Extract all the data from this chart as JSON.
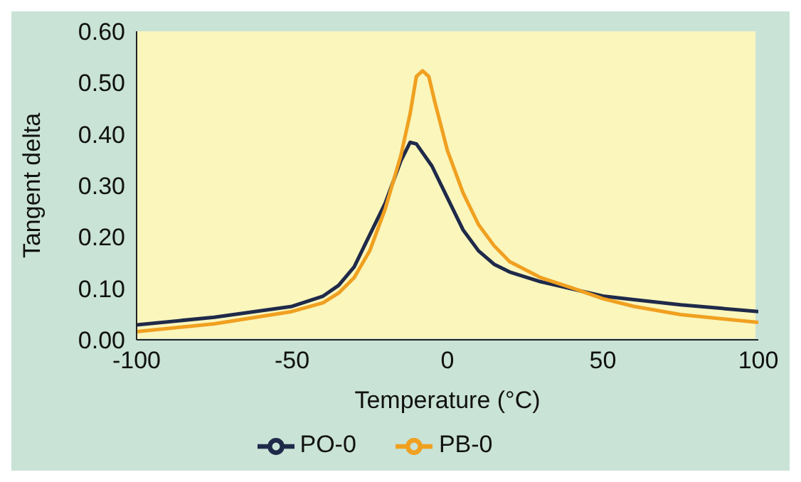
{
  "chart_data": {
    "type": "line",
    "xlabel": "Temperature (°C)",
    "ylabel": "Tangent delta",
    "xlim": [
      -100,
      100
    ],
    "xticks": [
      -100,
      -50,
      0,
      50,
      100
    ],
    "ylim": [
      0,
      0.6
    ],
    "yticks": [
      {
        "value": 0,
        "label": "0.00"
      },
      {
        "value": 0.1,
        "label": "0.10"
      },
      {
        "value": 0.2,
        "label": "0.20"
      },
      {
        "value": 0.3,
        "label": "0.30"
      },
      {
        "value": 0.4,
        "label": "0.40"
      },
      {
        "value": 0.5,
        "label": "0.50"
      },
      {
        "value": 0.6,
        "label": "0.60"
      }
    ],
    "grid": false,
    "legend": "bottom",
    "marker": "none",
    "line_style": "solid",
    "series": [
      {
        "name": "PO-0",
        "color": "#1f2a4a",
        "x": [
          -100,
          -75,
          -50,
          -40,
          -35,
          -30,
          -25,
          -20,
          -15,
          -12,
          -10,
          -5,
          0,
          5,
          10,
          15,
          20,
          30,
          40,
          50,
          60,
          75,
          100
        ],
        "values": [
          0.029,
          0.044,
          0.065,
          0.085,
          0.106,
          0.142,
          0.204,
          0.266,
          0.348,
          0.384,
          0.381,
          0.338,
          0.276,
          0.214,
          0.173,
          0.147,
          0.132,
          0.113,
          0.099,
          0.085,
          0.078,
          0.068,
          0.055
        ]
      },
      {
        "name": "PB-0",
        "color": "#f0a020",
        "x": [
          -100,
          -75,
          -50,
          -40,
          -35,
          -30,
          -25,
          -20,
          -15,
          -12,
          -10,
          -8,
          -6,
          -4,
          0,
          5,
          10,
          15,
          20,
          30,
          40,
          50,
          60,
          75,
          100
        ],
        "values": [
          0.016,
          0.031,
          0.055,
          0.072,
          0.091,
          0.121,
          0.173,
          0.255,
          0.358,
          0.44,
          0.512,
          0.523,
          0.512,
          0.461,
          0.368,
          0.286,
          0.224,
          0.183,
          0.152,
          0.121,
          0.101,
          0.08,
          0.065,
          0.049,
          0.034
        ]
      }
    ]
  }
}
